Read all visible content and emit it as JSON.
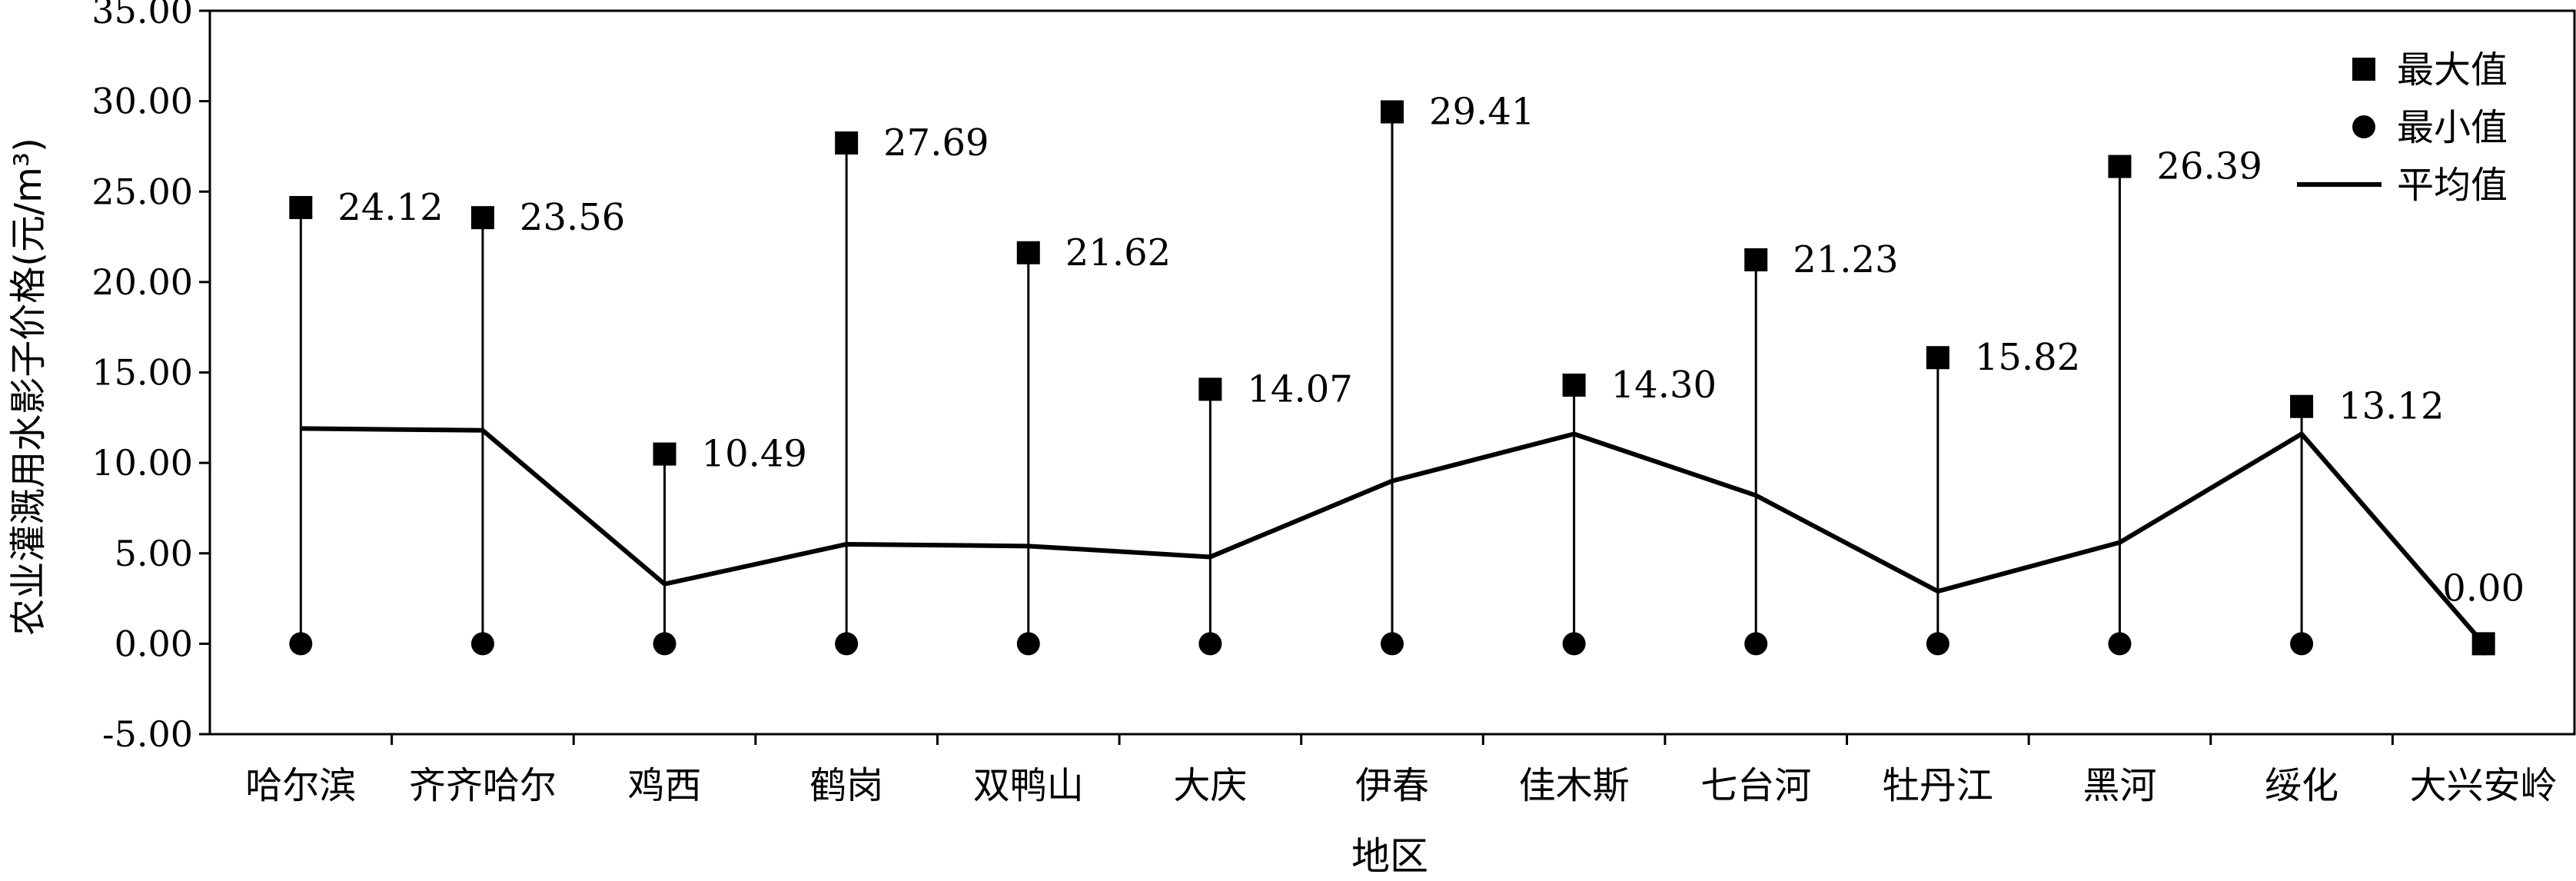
{
  "chart_data": {
    "type": "scatter",
    "title": "",
    "xlabel": "地区",
    "ylabel": "农业灌溉用水影子价格(元/m³)",
    "ylim": [
      -5,
      35
    ],
    "yticks": [
      "-5.00",
      "0.00",
      "5.00",
      "10.00",
      "15.00",
      "20.00",
      "25.00",
      "30.00",
      "35.00"
    ],
    "grid": false,
    "legend_position": "top-right",
    "categories": [
      "哈尔滨",
      "齐齐哈尔",
      "鸡西",
      "鹤岗",
      "双鸭山",
      "大庆",
      "伊春",
      "佳木斯",
      "七台河",
      "牡丹江",
      "黑河",
      "绥化",
      "大兴安岭"
    ],
    "series": [
      {
        "name": "最大值",
        "marker": "square",
        "values": [
          24.12,
          23.56,
          10.49,
          27.69,
          21.62,
          14.07,
          29.41,
          14.3,
          21.23,
          15.82,
          26.39,
          13.12,
          0.0
        ],
        "labels": [
          "24.12",
          "23.56",
          "10.49",
          "27.69",
          "21.62",
          "14.07",
          "29.41",
          "14.30",
          "21.23",
          "15.82",
          "26.39",
          "13.12",
          "0.00"
        ]
      },
      {
        "name": "最小值",
        "marker": "circle",
        "values": [
          0,
          0,
          0,
          0,
          0,
          0,
          0,
          0,
          0,
          0,
          0,
          0,
          0
        ]
      },
      {
        "name": "平均值",
        "marker": "line",
        "values": [
          11.9,
          11.8,
          3.3,
          5.5,
          5.4,
          4.8,
          9.0,
          11.6,
          8.2,
          2.9,
          5.6,
          11.6,
          0.0
        ]
      }
    ]
  }
}
